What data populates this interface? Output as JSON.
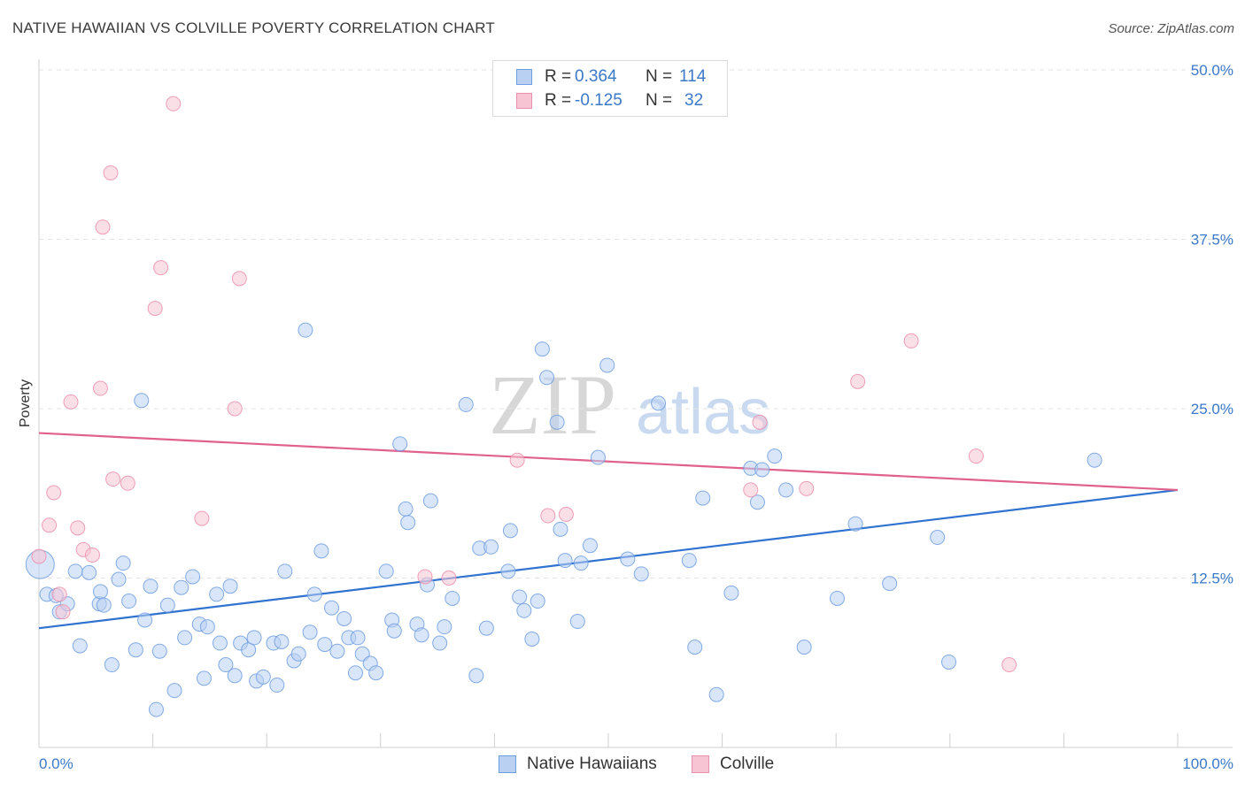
{
  "title": "NATIVE HAWAIIAN VS COLVILLE POVERTY CORRELATION CHART",
  "source": "Source: ZipAtlas.com",
  "watermark": {
    "zip": "ZIP",
    "atlas": "atlas"
  },
  "colors": {
    "blue": "#6f9fe0",
    "blue_fill": "#b9d0f2",
    "blue_line": "#2f72d0",
    "pink": "#eb8fac",
    "pink_fill": "#f7c4d3",
    "pink_line": "#e0628c",
    "tick_text": "#3b78c8"
  },
  "legend": {
    "series1": {
      "r_label": "R =",
      "r_value": "0.364",
      "n_label": "N =",
      "n_value": "114"
    },
    "series2": {
      "r_label": "R =",
      "r_value": "-0.125",
      "n_label": "N =",
      "n_value": "32"
    }
  },
  "chart_data": {
    "type": "scatter",
    "ylabel": "Poverty",
    "xlabel": "",
    "xlim": [
      0,
      100
    ],
    "ylim": [
      0,
      50
    ],
    "x_tick_labels": [
      "0.0%",
      "100.0%"
    ],
    "y_tick_labels": [
      "12.5%",
      "25.0%",
      "37.5%",
      "50.0%"
    ],
    "y_ticks": [
      12.5,
      25.0,
      37.5,
      50.0
    ],
    "series": [
      {
        "name": "Native Hawaiians",
        "color": "blue",
        "trend": {
          "x": [
            0,
            100
          ],
          "y": [
            8.8,
            19.0
          ]
        },
        "points": [
          [
            0.1,
            13.5
          ],
          [
            0.7,
            11.3
          ],
          [
            1.5,
            11.2
          ],
          [
            1.8,
            10.0
          ],
          [
            2.5,
            10.6
          ],
          [
            3.2,
            13.0
          ],
          [
            3.6,
            7.5
          ],
          [
            4.4,
            12.9
          ],
          [
            5.3,
            10.6
          ],
          [
            5.4,
            11.5
          ],
          [
            5.7,
            10.5
          ],
          [
            6.4,
            6.1
          ],
          [
            7.0,
            12.4
          ],
          [
            7.4,
            13.6
          ],
          [
            7.9,
            10.8
          ],
          [
            8.5,
            7.2
          ],
          [
            9.0,
            25.6
          ],
          [
            9.3,
            9.4
          ],
          [
            9.8,
            11.9
          ],
          [
            10.3,
            2.8
          ],
          [
            10.6,
            7.1
          ],
          [
            11.3,
            10.5
          ],
          [
            11.9,
            4.2
          ],
          [
            12.5,
            11.8
          ],
          [
            12.8,
            8.1
          ],
          [
            13.5,
            12.6
          ],
          [
            14.1,
            9.1
          ],
          [
            14.5,
            5.1
          ],
          [
            14.8,
            8.9
          ],
          [
            15.6,
            11.3
          ],
          [
            15.9,
            7.7
          ],
          [
            16.4,
            6.1
          ],
          [
            16.8,
            11.9
          ],
          [
            17.2,
            5.3
          ],
          [
            17.7,
            7.7
          ],
          [
            18.4,
            7.2
          ],
          [
            18.9,
            8.1
          ],
          [
            19.1,
            4.9
          ],
          [
            19.7,
            5.2
          ],
          [
            20.6,
            7.7
          ],
          [
            20.9,
            4.6
          ],
          [
            21.3,
            7.8
          ],
          [
            21.6,
            13.0
          ],
          [
            22.4,
            6.4
          ],
          [
            22.8,
            6.9
          ],
          [
            23.4,
            30.8
          ],
          [
            23.8,
            8.5
          ],
          [
            24.2,
            11.3
          ],
          [
            24.8,
            14.5
          ],
          [
            25.1,
            7.6
          ],
          [
            25.7,
            10.3
          ],
          [
            26.2,
            7.1
          ],
          [
            26.8,
            9.5
          ],
          [
            27.2,
            8.1
          ],
          [
            27.8,
            5.5
          ],
          [
            28.0,
            8.1
          ],
          [
            28.4,
            6.9
          ],
          [
            29.1,
            6.2
          ],
          [
            29.6,
            5.5
          ],
          [
            30.5,
            13.0
          ],
          [
            31.0,
            9.4
          ],
          [
            31.2,
            8.6
          ],
          [
            31.7,
            22.4
          ],
          [
            32.2,
            17.6
          ],
          [
            32.4,
            16.6
          ],
          [
            33.2,
            9.1
          ],
          [
            33.6,
            8.3
          ],
          [
            34.1,
            12.0
          ],
          [
            34.4,
            18.2
          ],
          [
            35.2,
            7.7
          ],
          [
            35.6,
            8.9
          ],
          [
            36.3,
            11.0
          ],
          [
            37.5,
            25.3
          ],
          [
            38.4,
            5.3
          ],
          [
            38.7,
            14.7
          ],
          [
            39.3,
            8.8
          ],
          [
            39.7,
            14.8
          ],
          [
            41.2,
            13.0
          ],
          [
            41.4,
            16.0
          ],
          [
            42.2,
            11.1
          ],
          [
            42.6,
            10.1
          ],
          [
            43.3,
            8.0
          ],
          [
            43.8,
            10.8
          ],
          [
            44.2,
            29.4
          ],
          [
            44.6,
            27.3
          ],
          [
            45.5,
            24.0
          ],
          [
            45.8,
            16.1
          ],
          [
            46.2,
            13.8
          ],
          [
            47.3,
            9.3
          ],
          [
            47.6,
            13.6
          ],
          [
            48.4,
            14.9
          ],
          [
            49.1,
            21.4
          ],
          [
            49.9,
            28.2
          ],
          [
            51.7,
            13.9
          ],
          [
            52.9,
            12.8
          ],
          [
            54.4,
            25.4
          ],
          [
            57.1,
            13.8
          ],
          [
            57.6,
            7.4
          ],
          [
            58.3,
            18.4
          ],
          [
            59.5,
            3.9
          ],
          [
            60.8,
            11.4
          ],
          [
            62.5,
            20.6
          ],
          [
            63.1,
            18.1
          ],
          [
            63.5,
            20.5
          ],
          [
            64.6,
            21.5
          ],
          [
            65.6,
            19.0
          ],
          [
            67.2,
            7.4
          ],
          [
            70.1,
            11.0
          ],
          [
            71.7,
            16.5
          ],
          [
            74.7,
            12.1
          ],
          [
            78.9,
            15.5
          ],
          [
            79.9,
            6.3
          ],
          [
            92.7,
            21.2
          ]
        ]
      },
      {
        "name": "Colville",
        "color": "pink",
        "trend": {
          "x": [
            0,
            100
          ],
          "y": [
            23.2,
            19.0
          ]
        },
        "points": [
          [
            0.0,
            14.1
          ],
          [
            0.9,
            16.4
          ],
          [
            1.3,
            18.8
          ],
          [
            1.8,
            11.3
          ],
          [
            2.1,
            10.0
          ],
          [
            2.8,
            25.5
          ],
          [
            3.4,
            16.2
          ],
          [
            3.9,
            14.6
          ],
          [
            4.7,
            14.2
          ],
          [
            5.4,
            26.5
          ],
          [
            5.6,
            38.4
          ],
          [
            6.3,
            42.4
          ],
          [
            6.5,
            19.8
          ],
          [
            7.8,
            19.5
          ],
          [
            10.2,
            32.4
          ],
          [
            10.7,
            35.4
          ],
          [
            11.8,
            47.5
          ],
          [
            14.3,
            16.9
          ],
          [
            17.2,
            25.0
          ],
          [
            17.6,
            34.6
          ],
          [
            33.9,
            12.6
          ],
          [
            36.0,
            12.5
          ],
          [
            42.0,
            21.2
          ],
          [
            44.7,
            17.1
          ],
          [
            46.3,
            17.2
          ],
          [
            62.5,
            19.0
          ],
          [
            63.3,
            24.0
          ],
          [
            67.4,
            19.1
          ],
          [
            71.9,
            27.0
          ],
          [
            76.6,
            30.0
          ],
          [
            82.3,
            21.5
          ],
          [
            85.2,
            6.1
          ]
        ]
      }
    ]
  },
  "bottom_legend": {
    "series1": "Native Hawaiians",
    "series2": "Colville"
  }
}
